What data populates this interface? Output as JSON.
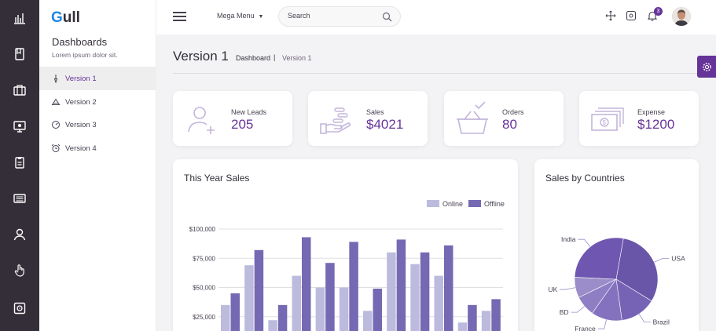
{
  "sidebar": {
    "logo_first": "G",
    "logo_rest": "ull",
    "title": "Dashboards",
    "subtitle": "Lorem ipsum dolor sit.",
    "items": [
      {
        "label": "Version 1",
        "icon": "clock-icon",
        "active": true
      },
      {
        "label": "Version 2",
        "icon": "pie-chart-icon",
        "active": false
      },
      {
        "label": "Version 3",
        "icon": "speedometer-icon",
        "active": false
      },
      {
        "label": "Version 4",
        "icon": "alarm-clock-icon",
        "active": false
      }
    ]
  },
  "rail": {
    "icons": [
      "bar-chart-icon",
      "book-icon",
      "suitcase-icon",
      "monitor-icon",
      "clipboard-icon",
      "newspaper-icon",
      "user-icon",
      "hand-pointer-icon",
      "safe-icon"
    ]
  },
  "header": {
    "mega_menu": "Mega Menu",
    "search_placeholder": "Search",
    "notification_count": "3"
  },
  "page": {
    "title": "Version 1",
    "breadcrumb_root": "Dashboard",
    "breadcrumb_sep": "|",
    "breadcrumb_current": "Version 1"
  },
  "stats": [
    {
      "label": "New Leads",
      "value": "205",
      "icon": "add-user-icon"
    },
    {
      "label": "Sales",
      "value": "$4021",
      "icon": "money-hand-icon"
    },
    {
      "label": "Orders",
      "value": "80",
      "icon": "basket-icon"
    },
    {
      "label": "Expense",
      "value": "$1200",
      "icon": "money-bills-icon"
    }
  ],
  "sales_chart": {
    "title": "This Year Sales",
    "chart_data": {
      "type": "bar",
      "series": [
        {
          "name": "Online",
          "color": "#bcbbdd",
          "values": [
            35000,
            69000,
            22000,
            60000,
            50000,
            50000,
            30000,
            80000,
            70000,
            60000,
            20000,
            30000
          ]
        },
        {
          "name": "Offline",
          "color": "#7569b3",
          "values": [
            45000,
            82000,
            35000,
            93000,
            71000,
            89000,
            49000,
            91000,
            80000,
            86000,
            35000,
            40000
          ]
        }
      ],
      "y_ticks": [
        "$25,000",
        "$50,000",
        "$75,000",
        "$100,000"
      ],
      "ylim": [
        0,
        100000
      ],
      "legend": "top-right",
      "grid": true
    }
  },
  "country_chart": {
    "title": "Sales by Countries",
    "chart_data": {
      "type": "pie",
      "slices": [
        {
          "label": "USA",
          "value": 31,
          "color": "#6956a8"
        },
        {
          "label": "Brazil",
          "value": 14,
          "color": "#7763b5"
        },
        {
          "label": "France",
          "value": 12,
          "color": "#8472bf"
        },
        {
          "label": "BD",
          "value": 8,
          "color": "#8e7ec4"
        },
        {
          "label": "UK",
          "value": 8,
          "color": "#9a8dc9"
        },
        {
          "label": "India",
          "value": 27,
          "color": "#6f56b0"
        }
      ]
    }
  }
}
